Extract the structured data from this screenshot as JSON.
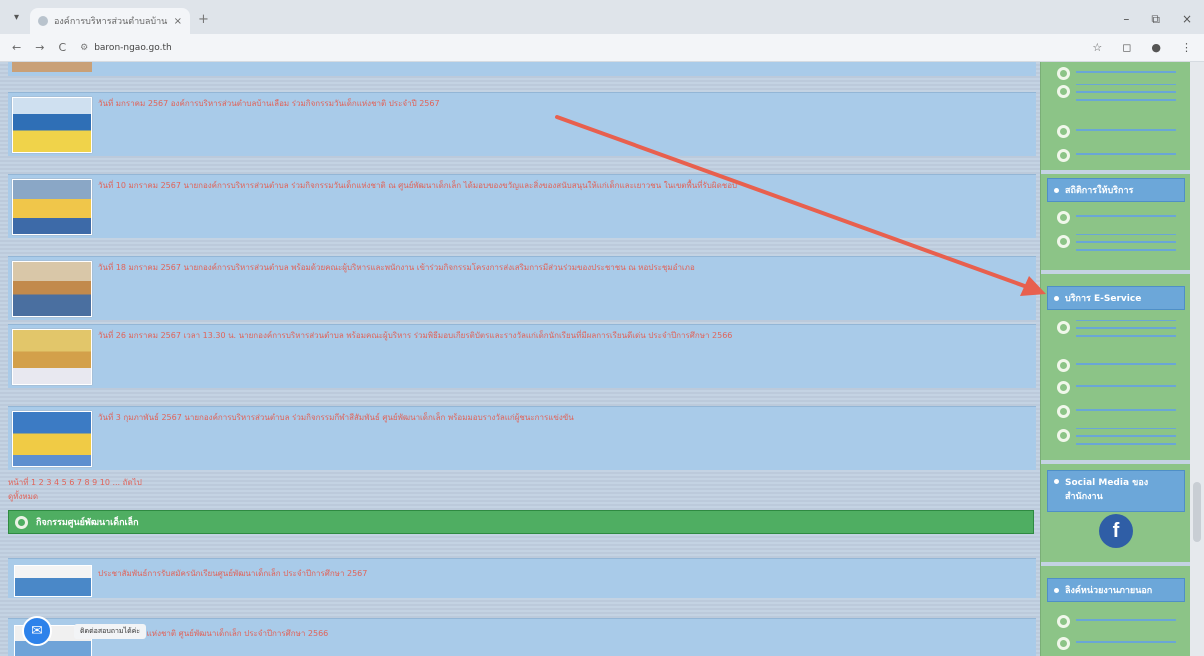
{
  "browser": {
    "tab_title": "องค์การบริหารส่วนตำบลบ้านเลือม",
    "tab_close": "×",
    "new_tab": "+",
    "url": "baron-ngao.go.th",
    "window_controls": [
      "–",
      "⧉",
      "×"
    ],
    "nav": {
      "back": "←",
      "forward": "→",
      "reload": "C"
    }
  },
  "main": {
    "news": [
      {
        "text": "วันที่ มกราคม 2567 องค์การบริหารส่วนตำบลบ้านเลือม ร่วมกิจกรรมวันเด็กแห่งชาติ ประจำปี 2567"
      },
      {
        "text": "วันที่ 10 มกราคม 2567 นายกองค์การบริหารส่วนตำบล ร่วมกิจกรรมวันเด็กแห่งชาติ ณ ศูนย์พัฒนาเด็กเล็ก ได้มอบของขวัญและสิ่งของสนับสนุนให้แก่เด็กและเยาวชน ในเขตพื้นที่รับผิดชอบ"
      },
      {
        "text": "วันที่ 18 มกราคม 2567 นายกองค์การบริหารส่วนตำบล พร้อมด้วยคณะผู้บริหารและพนักงาน เข้าร่วมกิจกรรมโครงการส่งเสริมการมีส่วนร่วมของประชาชน ณ หอประชุมอำเภอ"
      },
      {
        "text": "วันที่ 26 มกราคม 2567 เวลา 13.30 น. นายกองค์การบริหารส่วนตำบล พร้อมคณะผู้บริหาร ร่วมพิธีมอบเกียรติบัตรและรางวัลแก่เด็กนักเรียนที่มีผลการเรียนดีเด่น ประจำปีการศึกษา 2566"
      },
      {
        "text": "วันที่ 3 กุมภาพันธ์ 2567 นายกองค์การบริหารส่วนตำบล ร่วมกิจกรรมกีฬาสีสัมพันธ์ ศูนย์พัฒนาเด็กเล็ก พร้อมมอบรางวัลแก่ผู้ชนะการแข่งขัน"
      }
    ],
    "pager": "หน้าที่ 1 2 3 4 5 6 7 8 9 10 ... ถัดไป",
    "pager_sub": "ดูทั้งหมด",
    "section_title": "กิจกรรมศูนย์พัฒนาเด็กเล็ก",
    "lower_news": [
      {
        "text": "ประชาสัมพันธ์การรับสมัครนักเรียนศูนย์พัฒนาเด็กเล็ก ประจำปีการศึกษา 2567"
      },
      {
        "text": "กิจกรรมวันแม่แห่งชาติ ศูนย์พัฒนาเด็กเล็ก ประจำปีการศึกษา 2566"
      }
    ],
    "chat_label": "ติดต่อสอบถามได้ค่ะ"
  },
  "sidebar": {
    "sections": [
      {
        "title": "สถิติการให้บริการ"
      },
      {
        "title": "บริการ E-Service"
      },
      {
        "title": "Social Media ของสำนักงาน"
      },
      {
        "title": "ลิงค์หน่วยงานภายนอก"
      }
    ],
    "facebook_letter": "f"
  },
  "colors": {
    "main_row": "#a9cbe9",
    "sidebar_green": "#8cc487",
    "section_green": "#4fae62",
    "header_blue": "#6ca7d9",
    "link_red": "#e0645a",
    "arrow": "#e8604e"
  }
}
